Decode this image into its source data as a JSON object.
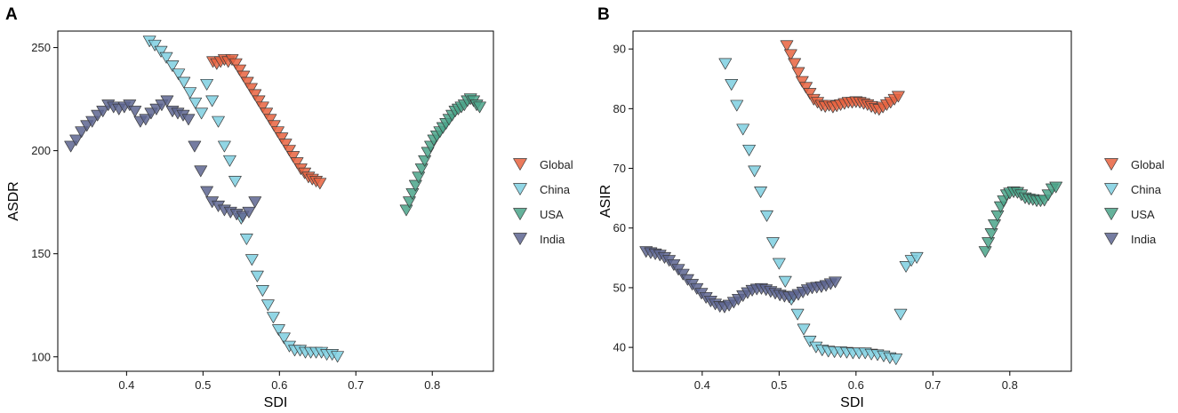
{
  "chart_data": [
    {
      "panel_label": "A",
      "type": "scatter",
      "marker": "inverted-triangle",
      "xlabel": "SDI",
      "ylabel": "ASDR",
      "xlim": [
        0.31,
        0.88
      ],
      "ylim": [
        93,
        258
      ],
      "x_ticks": [
        0.4,
        0.5,
        0.6,
        0.7,
        0.8
      ],
      "x_tick_labels": [
        "0.4",
        "0.5",
        "0.6",
        "0.7",
        "0.8"
      ],
      "y_ticks": [
        100,
        150,
        200,
        250
      ],
      "y_tick_labels": [
        "100",
        "150",
        "200",
        "250"
      ],
      "legend_position": "right",
      "series": [
        {
          "name": "Global",
          "color": "#e8633f",
          "points": [
            [
              0.513,
              243
            ],
            [
              0.518,
              242
            ],
            [
              0.523,
              243
            ],
            [
              0.528,
              244
            ],
            [
              0.533,
              243
            ],
            [
              0.538,
              244
            ],
            [
              0.543,
              242
            ],
            [
              0.548,
              239
            ],
            [
              0.553,
              236
            ],
            [
              0.558,
              233
            ],
            [
              0.563,
              230
            ],
            [
              0.568,
              227
            ],
            [
              0.573,
              224
            ],
            [
              0.578,
              221
            ],
            [
              0.583,
              218
            ],
            [
              0.588,
              215
            ],
            [
              0.593,
              212
            ],
            [
              0.598,
              209
            ],
            [
              0.603,
              206
            ],
            [
              0.608,
              203
            ],
            [
              0.613,
              200
            ],
            [
              0.618,
              197
            ],
            [
              0.623,
              194
            ],
            [
              0.628,
              191
            ],
            [
              0.633,
              189
            ],
            [
              0.638,
              187
            ],
            [
              0.643,
              186
            ],
            [
              0.648,
              185
            ],
            [
              0.653,
              184
            ]
          ]
        },
        {
          "name": "China",
          "color": "#7ecfe0",
          "points": [
            [
              0.43,
              253
            ],
            [
              0.437,
              251
            ],
            [
              0.445,
              248
            ],
            [
              0.452,
              245
            ],
            [
              0.46,
              241
            ],
            [
              0.468,
              237
            ],
            [
              0.475,
              233
            ],
            [
              0.483,
              228
            ],
            [
              0.49,
              223
            ],
            [
              0.498,
              218
            ],
            [
              0.505,
              232
            ],
            [
              0.512,
              224
            ],
            [
              0.52,
              214
            ],
            [
              0.528,
              202
            ],
            [
              0.535,
              195
            ],
            [
              0.542,
              185
            ],
            [
              0.55,
              167
            ],
            [
              0.557,
              157
            ],
            [
              0.564,
              147
            ],
            [
              0.571,
              139
            ],
            [
              0.578,
              132
            ],
            [
              0.585,
              125
            ],
            [
              0.592,
              119
            ],
            [
              0.599,
              113
            ],
            [
              0.606,
              109
            ],
            [
              0.613,
              105
            ],
            [
              0.62,
              103
            ],
            [
              0.627,
              103
            ],
            [
              0.634,
              102
            ],
            [
              0.641,
              102
            ],
            [
              0.648,
              102
            ],
            [
              0.655,
              102
            ],
            [
              0.662,
              101
            ],
            [
              0.669,
              101
            ],
            [
              0.676,
              100
            ]
          ]
        },
        {
          "name": "USA",
          "color": "#4aa58a",
          "points": [
            [
              0.766,
              171
            ],
            [
              0.77,
              175
            ],
            [
              0.774,
              179
            ],
            [
              0.778,
              183
            ],
            [
              0.782,
              187
            ],
            [
              0.786,
              191
            ],
            [
              0.79,
              195
            ],
            [
              0.794,
              199
            ],
            [
              0.798,
              202
            ],
            [
              0.802,
              205
            ],
            [
              0.806,
              207
            ],
            [
              0.81,
              209
            ],
            [
              0.814,
              211
            ],
            [
              0.818,
              213
            ],
            [
              0.822,
              215
            ],
            [
              0.826,
              217
            ],
            [
              0.83,
              219
            ],
            [
              0.834,
              220
            ],
            [
              0.838,
              221
            ],
            [
              0.842,
              222
            ],
            [
              0.846,
              224
            ],
            [
              0.85,
              225
            ],
            [
              0.854,
              224
            ],
            [
              0.858,
              222
            ],
            [
              0.862,
              221
            ]
          ]
        },
        {
          "name": "India",
          "color": "#5d6591",
          "points": [
            [
              0.327,
              202
            ],
            [
              0.334,
              205
            ],
            [
              0.341,
              209
            ],
            [
              0.348,
              212
            ],
            [
              0.355,
              214
            ],
            [
              0.362,
              217
            ],
            [
              0.369,
              219
            ],
            [
              0.376,
              222
            ],
            [
              0.383,
              221
            ],
            [
              0.39,
              220
            ],
            [
              0.397,
              221
            ],
            [
              0.404,
              222
            ],
            [
              0.411,
              219
            ],
            [
              0.418,
              214
            ],
            [
              0.425,
              215
            ],
            [
              0.432,
              218
            ],
            [
              0.439,
              220
            ],
            [
              0.446,
              222
            ],
            [
              0.453,
              224
            ],
            [
              0.46,
              219
            ],
            [
              0.467,
              218
            ],
            [
              0.474,
              217
            ],
            [
              0.481,
              215
            ],
            [
              0.489,
              202
            ],
            [
              0.497,
              190
            ],
            [
              0.505,
              180
            ],
            [
              0.512,
              175
            ],
            [
              0.52,
              173
            ],
            [
              0.528,
              171
            ],
            [
              0.536,
              170
            ],
            [
              0.544,
              169
            ],
            [
              0.552,
              168
            ],
            [
              0.56,
              170
            ],
            [
              0.568,
              175
            ]
          ]
        }
      ]
    },
    {
      "panel_label": "B",
      "type": "scatter",
      "marker": "inverted-triangle",
      "xlabel": "SDI",
      "ylabel": "ASIR",
      "xlim": [
        0.31,
        0.88
      ],
      "ylim": [
        36,
        93
      ],
      "x_ticks": [
        0.4,
        0.5,
        0.6,
        0.7,
        0.8
      ],
      "x_tick_labels": [
        "0.4",
        "0.5",
        "0.6",
        "0.7",
        "0.8"
      ],
      "y_ticks": [
        40,
        50,
        60,
        70,
        80,
        90
      ],
      "y_tick_labels": [
        "40",
        "50",
        "60",
        "70",
        "80",
        "90"
      ],
      "legend_position": "right",
      "series": [
        {
          "name": "Global",
          "color": "#e8633f",
          "points": [
            [
              0.51,
              90.5
            ],
            [
              0.515,
              89.0
            ],
            [
              0.52,
              87.5
            ],
            [
              0.525,
              86.0
            ],
            [
              0.53,
              84.5
            ],
            [
              0.535,
              83.5
            ],
            [
              0.54,
              82.5
            ],
            [
              0.545,
              81.5
            ],
            [
              0.55,
              81.0
            ],
            [
              0.555,
              80.5
            ],
            [
              0.56,
              80.3
            ],
            [
              0.565,
              80.5
            ],
            [
              0.57,
              80.2
            ],
            [
              0.575,
              80.4
            ],
            [
              0.58,
              80.6
            ],
            [
              0.585,
              80.8
            ],
            [
              0.59,
              81.0
            ],
            [
              0.595,
              81.0
            ],
            [
              0.6,
              81.1
            ],
            [
              0.605,
              81.0
            ],
            [
              0.61,
              80.8
            ],
            [
              0.615,
              80.6
            ],
            [
              0.62,
              80.3
            ],
            [
              0.625,
              80.0
            ],
            [
              0.63,
              79.8
            ],
            [
              0.635,
              80.2
            ],
            [
              0.64,
              80.6
            ],
            [
              0.645,
              81.0
            ],
            [
              0.65,
              81.5
            ],
            [
              0.655,
              82.0
            ]
          ]
        },
        {
          "name": "China",
          "color": "#7ecfe0",
          "points": [
            [
              0.43,
              87.5
            ],
            [
              0.438,
              84.0
            ],
            [
              0.445,
              80.5
            ],
            [
              0.453,
              76.5
            ],
            [
              0.461,
              73.0
            ],
            [
              0.468,
              69.5
            ],
            [
              0.476,
              66.0
            ],
            [
              0.484,
              62.0
            ],
            [
              0.492,
              57.5
            ],
            [
              0.5,
              54.0
            ],
            [
              0.508,
              51.0
            ],
            [
              0.516,
              48.0
            ],
            [
              0.524,
              45.5
            ],
            [
              0.532,
              43.0
            ],
            [
              0.54,
              41.0
            ],
            [
              0.548,
              40.0
            ],
            [
              0.556,
              39.5
            ],
            [
              0.564,
              39.3
            ],
            [
              0.572,
              39.2
            ],
            [
              0.58,
              39.2
            ],
            [
              0.588,
              39.1
            ],
            [
              0.596,
              39.0
            ],
            [
              0.604,
              39.0
            ],
            [
              0.612,
              39.0
            ],
            [
              0.62,
              38.8
            ],
            [
              0.628,
              38.7
            ],
            [
              0.636,
              38.5
            ],
            [
              0.644,
              38.2
            ],
            [
              0.652,
              38.0
            ],
            [
              0.658,
              45.5
            ],
            [
              0.665,
              53.5
            ],
            [
              0.672,
              54.5
            ],
            [
              0.679,
              55.0
            ]
          ]
        },
        {
          "name": "USA",
          "color": "#4aa58a",
          "points": [
            [
              0.768,
              56.0
            ],
            [
              0.772,
              57.5
            ],
            [
              0.776,
              59.0
            ],
            [
              0.78,
              60.5
            ],
            [
              0.784,
              62.0
            ],
            [
              0.788,
              63.5
            ],
            [
              0.792,
              64.5
            ],
            [
              0.796,
              65.5
            ],
            [
              0.8,
              65.8
            ],
            [
              0.805,
              66.0
            ],
            [
              0.81,
              65.9
            ],
            [
              0.815,
              65.5
            ],
            [
              0.82,
              65.0
            ],
            [
              0.825,
              64.8
            ],
            [
              0.83,
              64.7
            ],
            [
              0.835,
              64.5
            ],
            [
              0.84,
              64.5
            ],
            [
              0.845,
              64.6
            ],
            [
              0.85,
              65.5
            ],
            [
              0.855,
              66.5
            ],
            [
              0.86,
              66.8
            ]
          ]
        },
        {
          "name": "India",
          "color": "#5d6591",
          "points": [
            [
              0.327,
              56.0
            ],
            [
              0.333,
              55.8
            ],
            [
              0.339,
              55.6
            ],
            [
              0.345,
              55.4
            ],
            [
              0.351,
              55.0
            ],
            [
              0.357,
              54.5
            ],
            [
              0.363,
              53.8
            ],
            [
              0.369,
              53.0
            ],
            [
              0.375,
              52.2
            ],
            [
              0.381,
              51.3
            ],
            [
              0.387,
              50.5
            ],
            [
              0.393,
              49.8
            ],
            [
              0.399,
              49.0
            ],
            [
              0.405,
              48.3
            ],
            [
              0.411,
              47.7
            ],
            [
              0.417,
              47.2
            ],
            [
              0.423,
              46.8
            ],
            [
              0.429,
              46.7
            ],
            [
              0.435,
              47.0
            ],
            [
              0.441,
              47.5
            ],
            [
              0.447,
              48.0
            ],
            [
              0.453,
              48.6
            ],
            [
              0.459,
              49.1
            ],
            [
              0.465,
              49.5
            ],
            [
              0.471,
              49.7
            ],
            [
              0.477,
              49.8
            ],
            [
              0.483,
              49.6
            ],
            [
              0.489,
              49.3
            ],
            [
              0.495,
              49.0
            ],
            [
              0.501,
              48.7
            ],
            [
              0.507,
              48.5
            ],
            [
              0.513,
              48.4
            ],
            [
              0.519,
              48.5
            ],
            [
              0.525,
              48.8
            ],
            [
              0.531,
              49.2
            ],
            [
              0.537,
              49.6
            ],
            [
              0.543,
              49.9
            ],
            [
              0.549,
              50.0
            ],
            [
              0.555,
              50.1
            ],
            [
              0.561,
              50.3
            ],
            [
              0.567,
              50.6
            ],
            [
              0.573,
              50.9
            ]
          ]
        }
      ]
    }
  ]
}
